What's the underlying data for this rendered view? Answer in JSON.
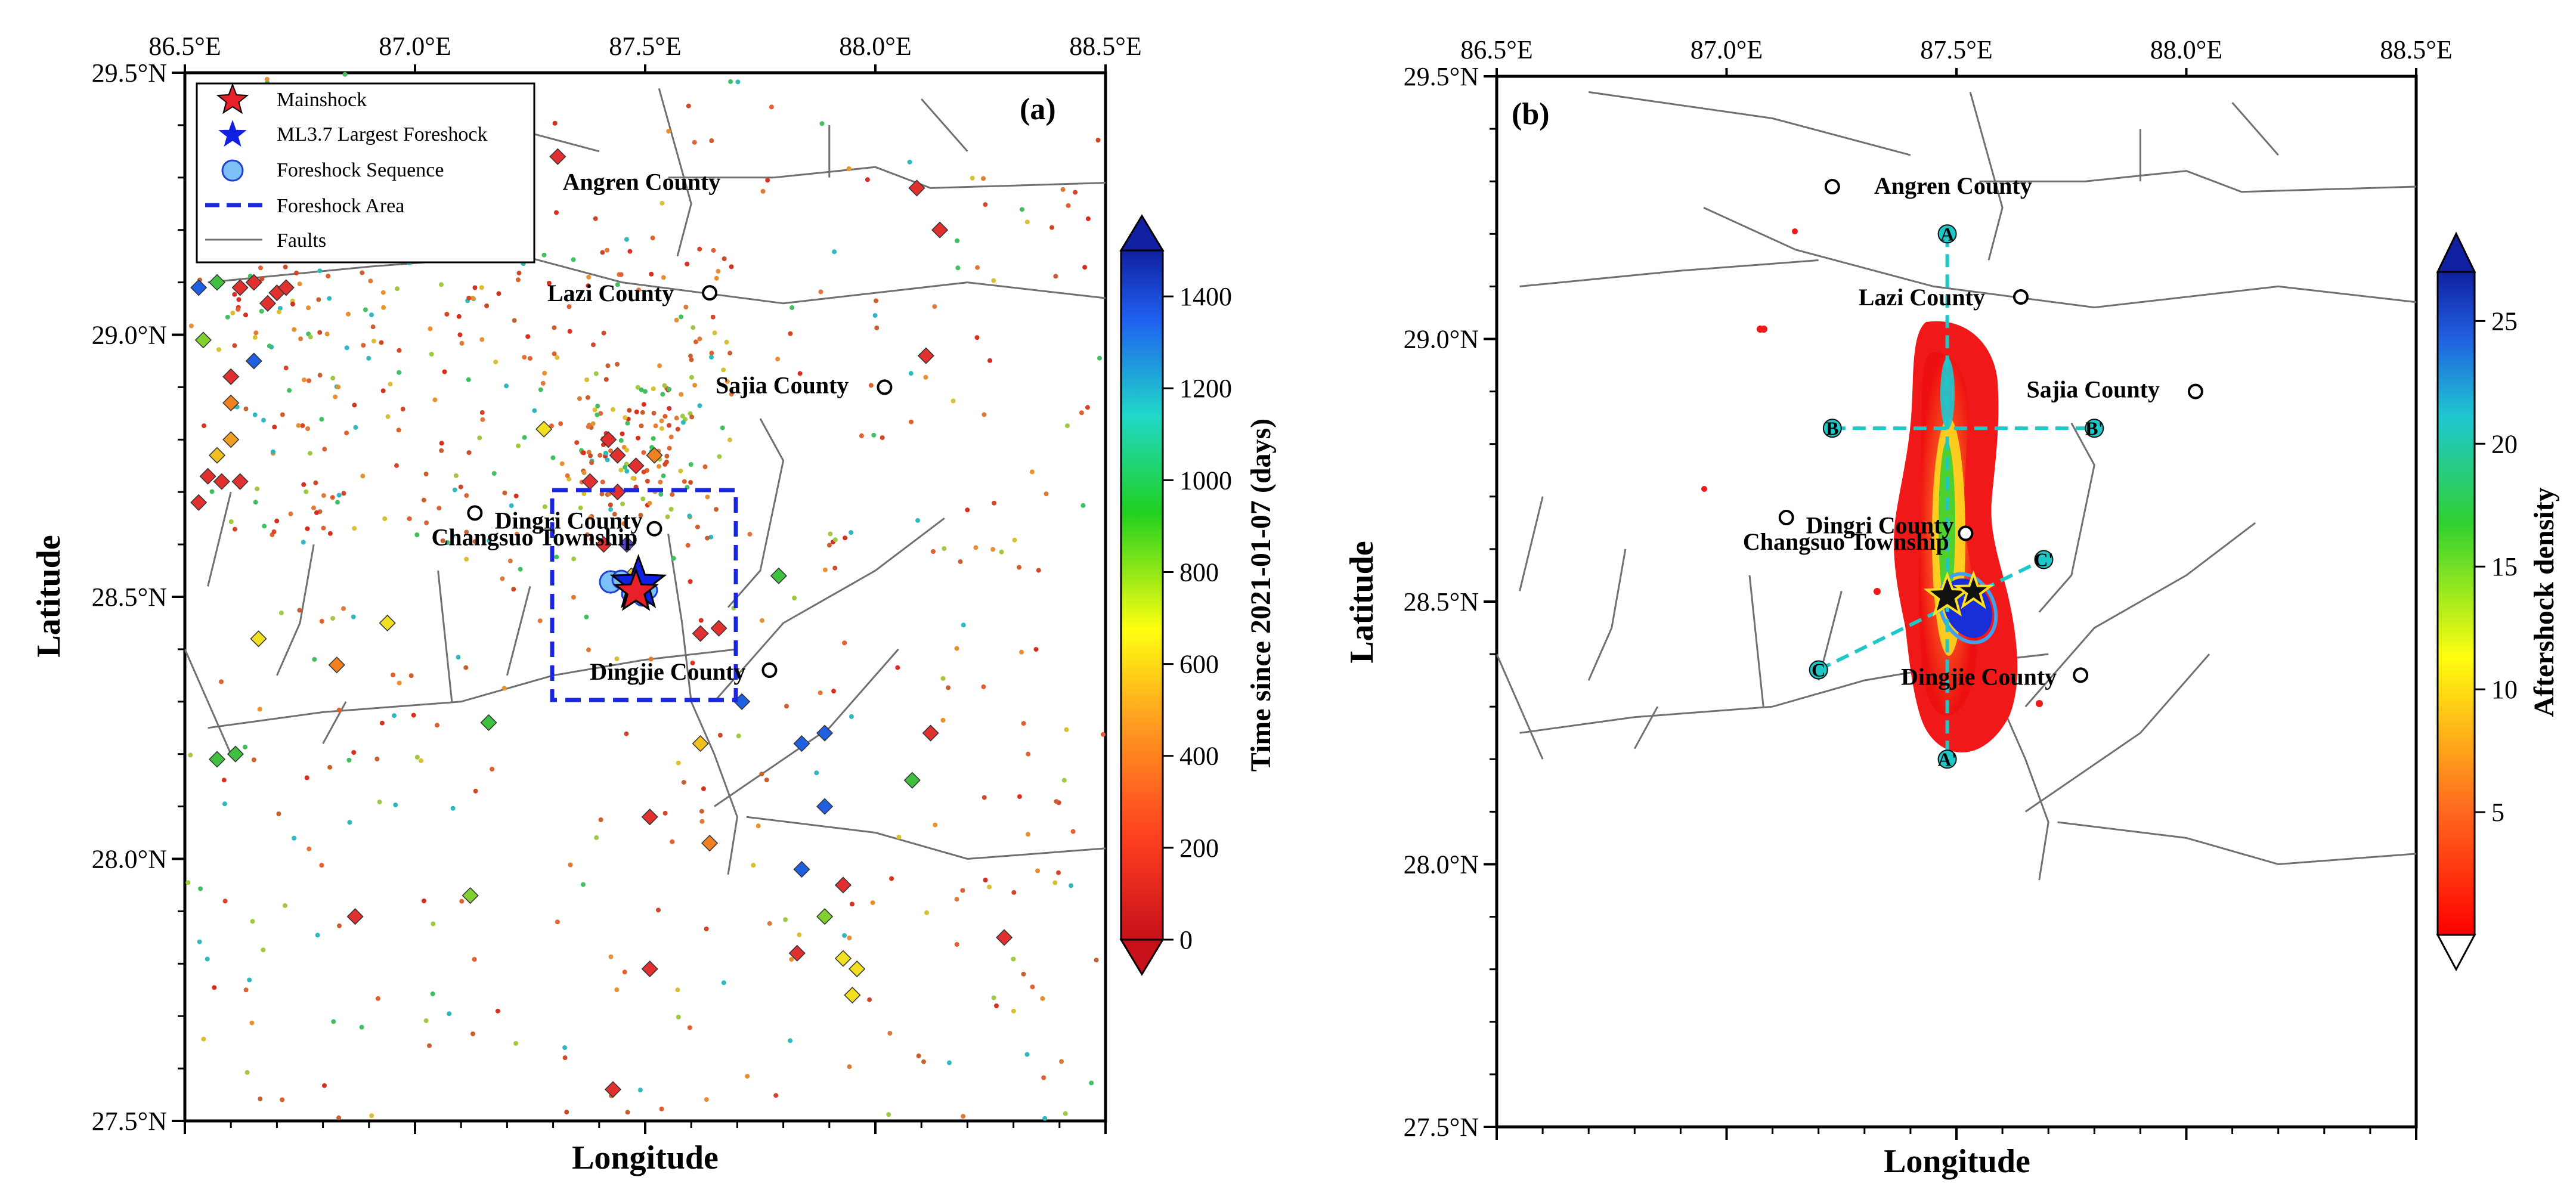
{
  "panels": [
    {
      "tag": "(a)",
      "xlabel": "Longitude",
      "ylabel": "Latitude",
      "x_ticks": [
        "86.5°E",
        "87.0°E",
        "87.5°E",
        "88.0°E",
        "88.5°E"
      ],
      "y_ticks": [
        "29.5°N",
        "29.0°N",
        "28.5°N",
        "28.0°N",
        "27.5°N"
      ],
      "legend": [
        {
          "label": "Mainshock",
          "symbol": "red-star"
        },
        {
          "label": "ML3.7 Largest Foreshock",
          "symbol": "blue-star"
        },
        {
          "label": "Foreshock Sequence",
          "symbol": "blue-circle"
        },
        {
          "label": "Foreshock Area",
          "symbol": "dashed-blue-line"
        },
        {
          "label": "Faults",
          "symbol": "gray-line"
        }
      ],
      "colorbar": {
        "title": "Time since 2021-01-07 (days)",
        "ticks": [
          "0",
          "200",
          "400",
          "600",
          "800",
          "1000",
          "1200",
          "1400"
        ],
        "range": [
          0,
          1500
        ],
        "colormap": "red-yellow-green-blue"
      },
      "places": [
        "Angren County",
        "Lazi County",
        "Sajia County",
        "Changsuo Township",
        "Dingri County",
        "Dingjie County"
      ]
    },
    {
      "tag": "(b)",
      "xlabel": "Longitude",
      "ylabel": "Latitude",
      "x_ticks": [
        "86.5°E",
        "87.0°E",
        "87.5°E",
        "88.0°E",
        "88.5°E"
      ],
      "y_ticks": [
        "29.5°N",
        "29.0°N",
        "28.5°N",
        "28.0°N",
        "27.5°N"
      ],
      "colorbar": {
        "title": "Aftershock density",
        "ticks": [
          "5",
          "10",
          "15",
          "20",
          "25"
        ],
        "range": [
          0,
          27
        ],
        "colormap": "white-red-yellow-green-blue"
      },
      "places": [
        "Angren County",
        "Lazi County",
        "Sajia County",
        "Changsuo Township",
        "Dingri County",
        "Dingjie County"
      ],
      "profiles": [
        {
          "start": "A",
          "end": "A'"
        },
        {
          "start": "B",
          "end": "B'"
        },
        {
          "start": "C",
          "end": "C'"
        }
      ]
    }
  ],
  "places_geo": [
    {
      "name": "Angren County",
      "lon": 87.23,
      "lat": 29.29
    },
    {
      "name": "Lazi County",
      "lon": 87.64,
      "lat": 29.08
    },
    {
      "name": "Sajia County",
      "lon": 88.02,
      "lat": 28.9
    },
    {
      "name": "Changsuo Township",
      "lon": 87.13,
      "lat": 28.66
    },
    {
      "name": "Dingri County",
      "lon": 87.52,
      "lat": 28.63
    },
    {
      "name": "Dingjie County",
      "lon": 87.77,
      "lat": 28.36
    }
  ],
  "features_geo": {
    "mainshock": {
      "lon": 87.48,
      "lat": 28.51
    },
    "largest_foreshock": {
      "lon": 87.48,
      "lat": 28.52
    },
    "foreshock_area": {
      "lon_min": 87.3,
      "lon_max": 87.7,
      "lat_min": 28.3,
      "lat_max": 28.7
    },
    "profiles": [
      {
        "name": "A",
        "lon1": 87.48,
        "lat1": 29.2,
        "lon2": 87.48,
        "lat2": 28.2
      },
      {
        "name": "B",
        "lon1": 87.23,
        "lat1": 28.83,
        "lon2": 87.8,
        "lat2": 28.83
      },
      {
        "name": "C",
        "lon1": 87.2,
        "lat1": 28.37,
        "lon2": 87.69,
        "lat2": 28.58
      }
    ]
  },
  "colors": {
    "mainshock": "#e8202a",
    "foreshock": "#1030e0",
    "fault": "#707070",
    "profile": "#1ec8c8"
  }
}
